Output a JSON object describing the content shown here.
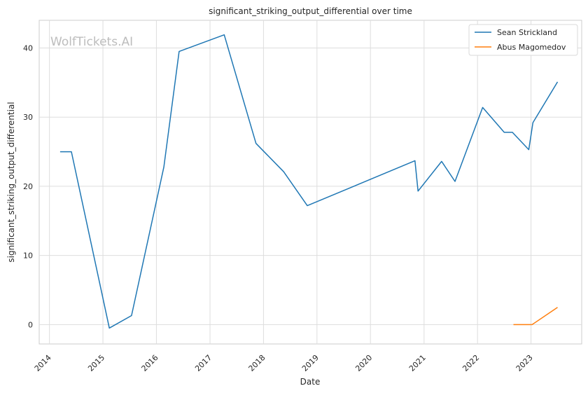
{
  "watermark": "WolfTickets.AI",
  "chart_data": {
    "type": "line",
    "title": "significant_striking_output_differential over time",
    "xlabel": "Date",
    "ylabel": "significant_striking_output_differential",
    "x_ticks": [
      "2014",
      "2015",
      "2016",
      "2017",
      "2018",
      "2019",
      "2020",
      "2021",
      "2022",
      "2023"
    ],
    "y_ticks": [
      0,
      10,
      20,
      30,
      40
    ],
    "xlim": [
      "2013-10-23",
      "2023-12-13"
    ],
    "ylim": [
      -2.8,
      44.0
    ],
    "grid": true,
    "legend_position": "top-right",
    "series": [
      {
        "name": "Sean Strickland",
        "color": "#1f77b4",
        "points": [
          [
            "2014-03-15",
            25.0
          ],
          [
            "2014-05-31",
            25.0
          ],
          [
            "2015-02-14",
            -0.5
          ],
          [
            "2015-07-15",
            1.3
          ],
          [
            "2016-02-21",
            22.8
          ],
          [
            "2016-06-04",
            39.5
          ],
          [
            "2017-04-08",
            41.9
          ],
          [
            "2017-11-11",
            26.2
          ],
          [
            "2018-05-19",
            22.1
          ],
          [
            "2018-10-27",
            17.2
          ],
          [
            "2020-10-31",
            23.7
          ],
          [
            "2020-11-21",
            19.3
          ],
          [
            "2021-05-01",
            23.6
          ],
          [
            "2021-07-31",
            20.7
          ],
          [
            "2022-02-05",
            31.4
          ],
          [
            "2022-07-02",
            27.8
          ],
          [
            "2022-08-27",
            27.8
          ],
          [
            "2022-12-17",
            25.3
          ],
          [
            "2023-01-14",
            29.2
          ],
          [
            "2023-07-01",
            35.1
          ]
        ]
      },
      {
        "name": "Abus Magomedov",
        "color": "#ff7f0e",
        "points": [
          [
            "2022-09-03",
            0.0
          ],
          [
            "2023-01-08",
            0.0
          ],
          [
            "2023-07-01",
            2.5
          ]
        ]
      }
    ]
  }
}
